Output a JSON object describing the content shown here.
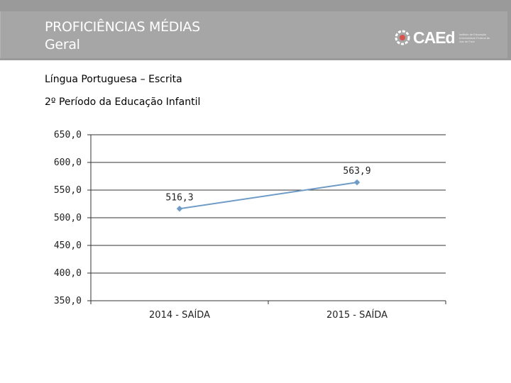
{
  "header": {
    "title_line1": "PROFICIÊNCIAS MÉDIAS",
    "title_line2": "Geral",
    "logo_text": "CAEd",
    "logo_small": "Instituto de Educação Universidade Federal de Juiz de Fora"
  },
  "content": {
    "subject": "Língua Portuguesa – Escrita",
    "period": "2º Período da Educação Infantil"
  },
  "colors": {
    "line": "#6f9cc6",
    "grid": "#333333",
    "header_bg": "#a6a6a6"
  },
  "chart_data": {
    "type": "line",
    "categories": [
      "2014 - SAÍDA",
      "2015 - SAÍDA"
    ],
    "series": [
      {
        "name": "Proficiência média",
        "values": [
          516.3,
          563.9
        ]
      }
    ],
    "data_labels": [
      "516,3",
      "563,9"
    ],
    "y_ticks": [
      350,
      400,
      450,
      500,
      550,
      600,
      650
    ],
    "y_tick_labels": [
      "350,0",
      "400,0",
      "450,0",
      "500,0",
      "550,0",
      "600,0",
      "650,0"
    ],
    "ylim": [
      350,
      650
    ],
    "grid": true,
    "title": "",
    "xlabel": "",
    "ylabel": ""
  }
}
